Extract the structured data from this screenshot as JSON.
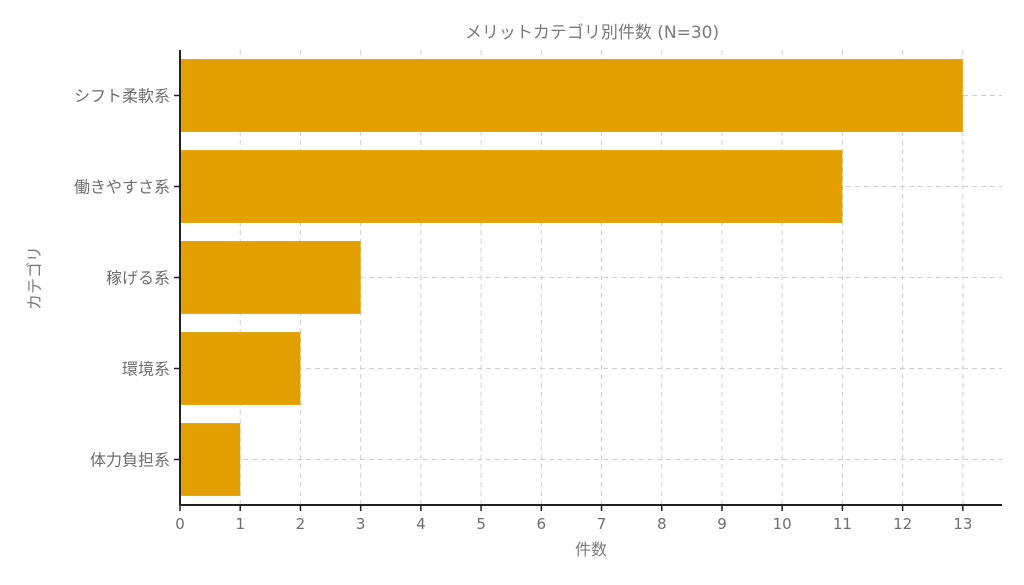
{
  "chart_data": {
    "type": "bar",
    "orientation": "horizontal",
    "title": "メリットカテゴリ別件数 (N=30)",
    "xlabel": "件数",
    "ylabel": "カテゴリ",
    "categories": [
      "シフト柔軟系",
      "働きやすさ系",
      "稼げる系",
      "環境系",
      "体力負担系"
    ],
    "values": [
      13,
      11,
      3,
      2,
      1
    ],
    "xlim": [
      0,
      13.65
    ],
    "xticks": [
      0,
      1,
      2,
      3,
      4,
      5,
      6,
      7,
      8,
      9,
      10,
      11,
      12,
      13
    ],
    "grid": true,
    "bar_color": "#E3A000"
  }
}
